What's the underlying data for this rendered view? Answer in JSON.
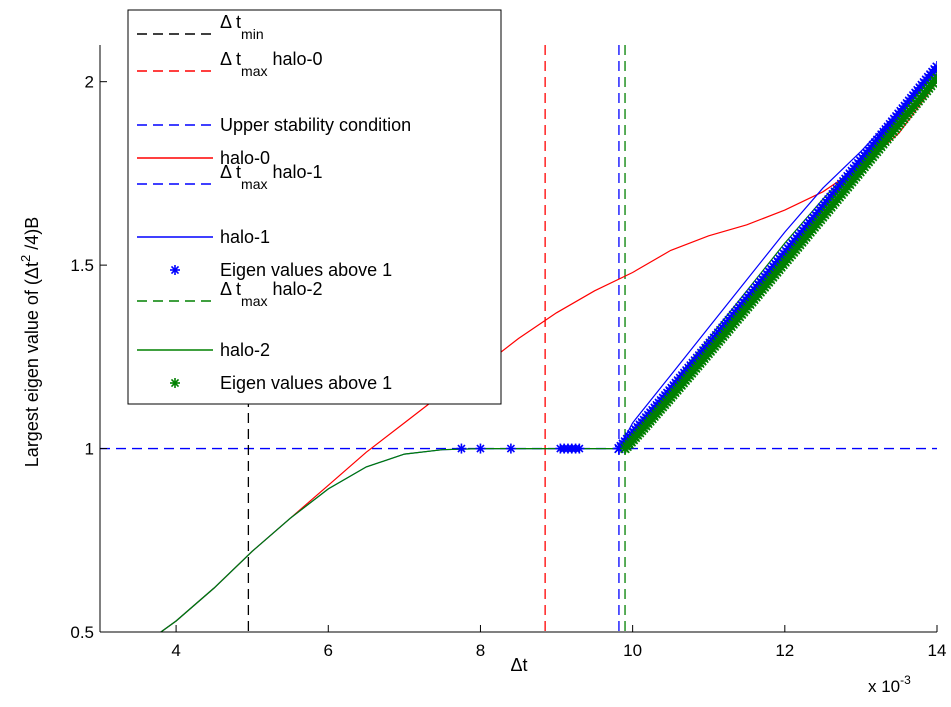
{
  "chart_data": {
    "type": "line",
    "xlabel": "Δt",
    "x_multiplier": "x 10",
    "x_multiplier_exp": "-3",
    "ylabel": "Largest eigen value of (Δt",
    "ylabel_sup": "2",
    "ylabel_tail": " /4)B",
    "xlim": [
      3,
      14
    ],
    "ylim": [
      0.5,
      2.1
    ],
    "x_ticks": [
      4,
      6,
      8,
      10,
      12,
      14
    ],
    "x_tick_labels": [
      "4",
      "6",
      "8",
      "10",
      "12",
      "14"
    ],
    "y_ticks": [
      0.5,
      1,
      1.5,
      2
    ],
    "y_tick_labels": [
      "0.5",
      "1",
      "1.5",
      "2"
    ],
    "grid": false,
    "legend_placement": "top-left",
    "colors": {
      "black": "#000000",
      "red": "#ff0000",
      "blue": "#0000ff",
      "green": "#008000"
    },
    "legend": [
      {
        "label": "Δ t",
        "sub": "min",
        "tail": "",
        "color": "#000000",
        "style": "dashed"
      },
      {
        "label": "Δ t",
        "sub": "max",
        "tail": " halo-0",
        "color": "#ff0000",
        "style": "dashed"
      },
      {
        "label": "Upper stability condition",
        "sub": "",
        "tail": "",
        "color": "#0000ff",
        "style": "dashed"
      },
      {
        "label": "halo-0",
        "sub": "",
        "tail": "",
        "color": "#ff0000",
        "style": "solid"
      },
      {
        "label": "Δ t",
        "sub": "max",
        "tail": " halo-1",
        "color": "#0000ff",
        "style": "dashed"
      },
      {
        "label": "halo-1",
        "sub": "",
        "tail": "",
        "color": "#0000ff",
        "style": "solid"
      },
      {
        "label": "Eigen values above 1",
        "sub": "",
        "tail": "",
        "color": "#0000ff",
        "style": "marker"
      },
      {
        "label": "Δ t",
        "sub": "max",
        "tail": " halo-2",
        "color": "#008000",
        "style": "dashed"
      },
      {
        "label": "halo-2",
        "sub": "",
        "tail": "",
        "color": "#008000",
        "style": "solid"
      },
      {
        "label": "Eigen values above 1",
        "sub": "",
        "tail": "",
        "color": "#008000",
        "style": "marker"
      }
    ],
    "vertical_lines": [
      {
        "name": "dt-min",
        "x": 4.95,
        "color": "#000000"
      },
      {
        "name": "dt-max-halo-0",
        "x": 8.85,
        "color": "#ff0000"
      },
      {
        "name": "dt-max-halo-1",
        "x": 9.82,
        "color": "#0000ff"
      },
      {
        "name": "dt-max-halo-2",
        "x": 9.9,
        "color": "#008000"
      }
    ],
    "horizontal_lines": [
      {
        "name": "upper-stability-condition",
        "y": 1.0,
        "color": "#0000ff"
      }
    ],
    "series": [
      {
        "name": "halo-0",
        "color": "#ff0000",
        "style": "solid",
        "x": [
          3.8,
          4.0,
          4.5,
          5.0,
          5.5,
          6.0,
          6.5,
          7.0,
          7.5,
          8.0,
          8.5,
          9.0,
          9.5,
          10.0,
          10.5,
          11.0,
          11.5,
          12.0,
          12.5,
          13.0,
          13.5,
          14.0
        ],
        "y": [
          0.5,
          0.53,
          0.62,
          0.72,
          0.81,
          0.9,
          0.99,
          1.07,
          1.15,
          1.22,
          1.3,
          1.37,
          1.43,
          1.48,
          1.54,
          1.58,
          1.61,
          1.65,
          1.7,
          1.77,
          1.86,
          2.0
        ]
      },
      {
        "name": "halo-1",
        "color": "#0000ff",
        "style": "solid",
        "x": [
          3.8,
          4.0,
          4.5,
          5.0,
          5.5,
          6.0,
          6.5,
          7.0,
          7.5,
          8.0,
          8.5,
          9.0,
          9.5,
          9.82,
          10.0,
          10.5,
          11.0,
          11.5,
          12.0,
          12.5,
          13.0,
          13.5,
          14.0
        ],
        "y": [
          0.5,
          0.53,
          0.62,
          0.72,
          0.81,
          0.89,
          0.95,
          0.985,
          0.997,
          1.0,
          1.0,
          1.0,
          1.0,
          1.0,
          1.07,
          1.2,
          1.33,
          1.46,
          1.59,
          1.71,
          1.81,
          1.92,
          2.03
        ]
      },
      {
        "name": "halo-2",
        "color": "#008000",
        "style": "solid",
        "x": [
          3.8,
          4.0,
          4.5,
          5.0,
          5.5,
          6.0,
          6.5,
          7.0,
          7.5,
          8.0,
          8.5,
          9.0,
          9.5,
          9.9,
          10.0,
          10.5,
          11.0,
          11.5,
          12.0,
          12.5,
          13.0,
          13.5,
          14.0
        ],
        "y": [
          0.5,
          0.53,
          0.62,
          0.72,
          0.81,
          0.89,
          0.95,
          0.985,
          0.997,
          1.0,
          1.0,
          1.0,
          1.0,
          1.0,
          1.04,
          1.17,
          1.3,
          1.43,
          1.56,
          1.68,
          1.79,
          1.9,
          2.0
        ]
      }
    ],
    "scatter": [
      {
        "name": "Eigen values above 1",
        "color": "#0000ff",
        "x": [
          7.75,
          8.0,
          8.4,
          9.05,
          9.1,
          9.15,
          9.2,
          9.25,
          9.3,
          9.82
        ],
        "y": [
          1.0,
          1.0,
          1.0,
          1.0,
          1.0,
          1.0,
          1.0,
          1.0,
          1.0,
          1.0
        ]
      },
      {
        "name": "Eigen values above 1",
        "color": "#008000",
        "x": [
          9.9
        ],
        "y": [
          1.0
        ]
      }
    ],
    "dense_bands": [
      {
        "name": "halo-1-markers",
        "color": "#0000ff",
        "x0": 9.82,
        "y0": 1.0,
        "x1": 14.0,
        "y1": 2.04,
        "curve": 1.03
      },
      {
        "name": "halo-2-markers",
        "color": "#008000",
        "x0": 9.9,
        "y0": 1.0,
        "x1": 14.0,
        "y1": 2.01,
        "curve": 1.03
      }
    ]
  }
}
